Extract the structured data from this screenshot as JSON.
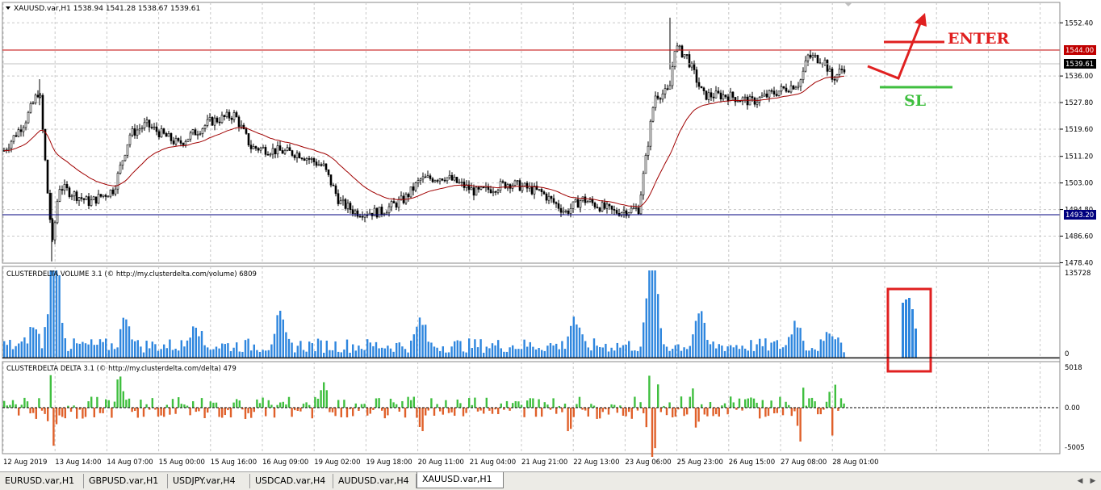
{
  "main_chart": {
    "symbol_info": "XAUUSD.var,H1  1538.94 1541.28 1538.67 1539.61",
    "price_ticks": [
      "1552.40",
      "1536.00",
      "1527.80",
      "1519.60",
      "1511.20",
      "1503.00",
      "1494.80",
      "1486.60",
      "1478.40"
    ],
    "hline_red_label": "1544.00",
    "hline_blue_label": "1493.20",
    "current_price_label": "1539.61",
    "enter_label": "ENTER",
    "sl_label": "SL",
    "colors": {
      "red_line": "#c00000",
      "blue_line": "#00007f",
      "ma": "#a00000",
      "enter": "#e02020",
      "sl": "#3fbf3f"
    }
  },
  "volume_panel": {
    "title": "CLUSTERDELTA VOLUME 3.1 (© http://my.clusterdelta.com/volume) 6809",
    "max_label": "135728",
    "zero_label": "0",
    "bar_color": "#2e86de"
  },
  "delta_panel": {
    "title": "CLUSTERDELTA DELTA 3.1 (© http://my.clusterdelta.com/delta) 479",
    "top_label": "5018",
    "zero_label": "0.00",
    "bottom_label": "-5005",
    "pos_color": "#3fbf3f",
    "neg_color": "#e0602a"
  },
  "time_axis": [
    "12 Aug 2019",
    "13 Aug 14:00",
    "14 Aug 07:00",
    "15 Aug 00:00",
    "15 Aug 16:00",
    "16 Aug 09:00",
    "19 Aug 02:00",
    "19 Aug 18:00",
    "20 Aug 11:00",
    "21 Aug 04:00",
    "21 Aug 21:00",
    "22 Aug 13:00",
    "23 Aug 06:00",
    "25 Aug 23:00",
    "26 Aug 15:00",
    "27 Aug 08:00",
    "28 Aug 01:00"
  ],
  "tabs": [
    "EURUSD.var,H1",
    "GBPUSD.var,H1",
    "USDJPY.var,H4",
    "USDCAD.var,H4",
    "AUDUSD.var,H4",
    "XAUUSD.var,H1"
  ],
  "active_tab": "XAUUSD.var,H1",
  "icons": [
    "window-menu-icon",
    "scroll-left-icon",
    "scroll-right-icon",
    "chart-shift-icon"
  ]
}
